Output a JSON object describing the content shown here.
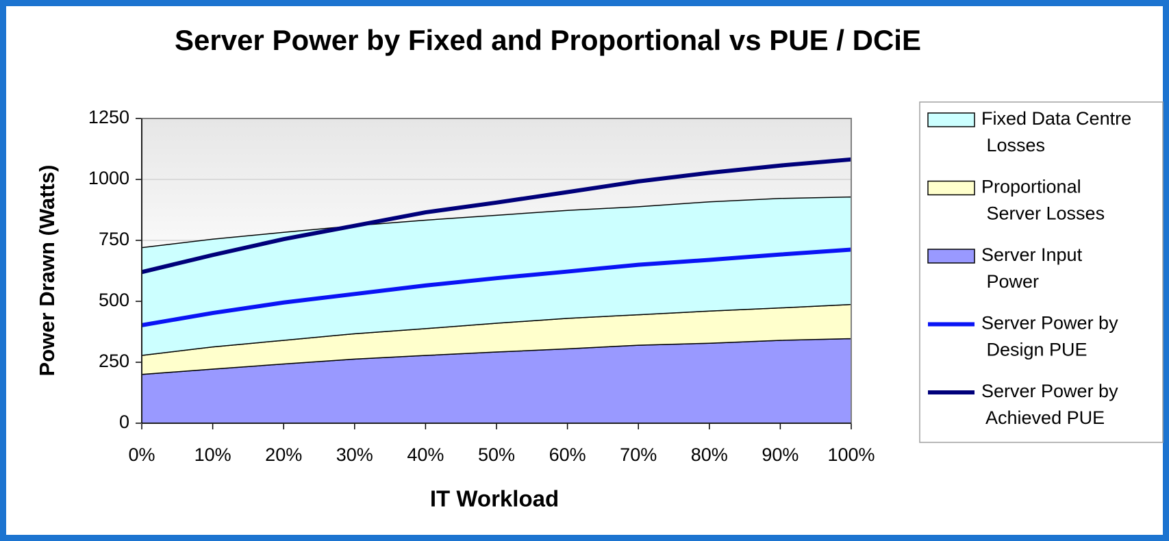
{
  "chart_data": {
    "type": "stacked-area-line",
    "title": "Server Power by Fixed and Proportional vs PUE / DCiE",
    "x_label": "IT Workload",
    "y_label": "Power Drawn (Watts)",
    "categories": [
      "0%",
      "10%",
      "20%",
      "30%",
      "40%",
      "50%",
      "60%",
      "70%",
      "80%",
      "90%",
      "100%"
    ],
    "series": [
      {
        "name": "Fixed Data Centre Losses",
        "kind": "area",
        "color": "#ccffff",
        "values": [
          442,
          442,
          443,
          443,
          445,
          443,
          443,
          443,
          448,
          449,
          441
        ]
      },
      {
        "name": "Proportional Server Losses",
        "kind": "area",
        "color": "#ffffcc",
        "values": [
          78,
          91,
          97,
          104,
          110,
          118,
          125,
          125,
          132,
          133,
          140
        ]
      },
      {
        "name": "Server Input Power",
        "kind": "area",
        "color": "#9999ff",
        "values": [
          200,
          222,
          243,
          263,
          278,
          292,
          305,
          320,
          328,
          340,
          347
        ]
      },
      {
        "name": "Server Power by Design PUE",
        "kind": "line",
        "color": "#0a14f5",
        "values": [
          402,
          452,
          495,
          530,
          565,
          595,
          622,
          650,
          670,
          692,
          712
        ]
      },
      {
        "name": "Server Power by Achieved PUE",
        "kind": "line",
        "color": "#00007a",
        "values": [
          620,
          690,
          755,
          810,
          865,
          905,
          948,
          992,
          1027,
          1057,
          1082
        ]
      }
    ],
    "ylim": [
      0,
      1250
    ],
    "yticks": [
      0,
      250,
      500,
      750,
      1000,
      1250
    ],
    "grid": true,
    "legend": "right"
  }
}
